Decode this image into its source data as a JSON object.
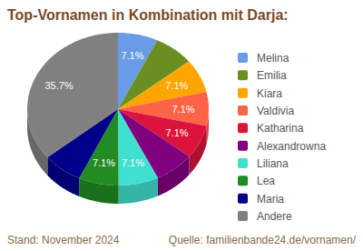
{
  "chart_data": {
    "type": "pie",
    "title": "Top-Vornamen in Kombination mit Darja:",
    "categories": [
      "Melina",
      "Emilia",
      "Kiara",
      "Valdivia",
      "Katharina",
      "Alexandrowna",
      "Liliana",
      "Lea",
      "Maria",
      "Andere"
    ],
    "values": [
      7.1,
      7.1,
      7.1,
      7.1,
      7.1,
      7.1,
      7.1,
      7.1,
      7.1,
      35.7
    ],
    "value_labels": [
      "7.1%",
      null,
      "7.1%",
      "7.1%",
      "7.1%",
      null,
      "7.1%",
      "7.1%",
      null,
      "35.7%"
    ],
    "colors": [
      "#6a9be6",
      "#6b8e23",
      "#ffa500",
      "#ff6347",
      "#dc143c",
      "#800080",
      "#40e0d0",
      "#228b22",
      "#00008b",
      "#808080"
    ],
    "data_labels": true,
    "legend": "right",
    "annotations": [
      "Stand: November 2024",
      "Quelle: familienbande24.de/vornamen/"
    ]
  }
}
